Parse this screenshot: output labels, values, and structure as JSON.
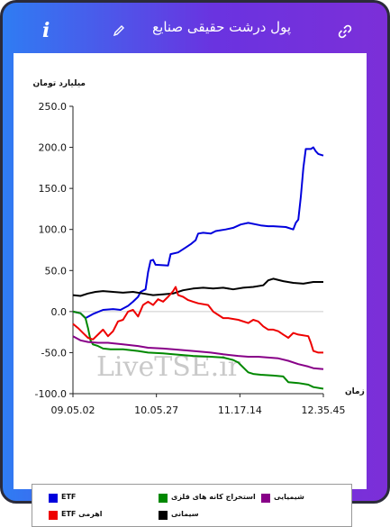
{
  "header": {
    "title": "پول درشت حقیقی صنایع"
  },
  "watermark": "LiveTSE.ir",
  "chart_data": {
    "type": "line",
    "ylabel": "میلیارد تومان",
    "xlabel": "زمان",
    "ylim": [
      -100,
      250
    ],
    "yticks": [
      "250.0",
      "200.0",
      "150.0",
      "100.0",
      "50.0",
      "0.0",
      "-50.0",
      "-100.0"
    ],
    "xticks": [
      "09.05.02",
      "10.05.27",
      "11.17.14",
      "12.35.45"
    ],
    "x_range": [
      0,
      100
    ],
    "grid": false,
    "legend_position": "bottom",
    "colors": {
      "ETF": "#0000dd",
      "metal": "#008800",
      "chem": "#880088",
      "lever": "#ee0000",
      "cement": "#000000"
    },
    "series": [
      {
        "name": "ETF",
        "color": "#0000dd",
        "points": [
          [
            0,
            0
          ],
          [
            3,
            -2
          ],
          [
            5,
            -8
          ],
          [
            8,
            -3
          ],
          [
            12,
            2
          ],
          [
            16,
            3
          ],
          [
            19,
            2
          ],
          [
            22,
            7
          ],
          [
            24,
            12
          ],
          [
            26,
            18
          ],
          [
            27,
            24
          ],
          [
            29,
            27
          ],
          [
            30,
            48
          ],
          [
            31,
            62
          ],
          [
            32,
            63
          ],
          [
            33,
            57
          ],
          [
            38,
            56
          ],
          [
            39,
            70
          ],
          [
            42,
            72
          ],
          [
            45,
            78
          ],
          [
            47,
            82
          ],
          [
            49,
            87
          ],
          [
            50,
            95
          ],
          [
            52,
            96
          ],
          [
            55,
            95
          ],
          [
            57,
            98
          ],
          [
            61,
            100
          ],
          [
            64,
            102
          ],
          [
            67,
            106
          ],
          [
            70,
            108
          ],
          [
            75,
            105
          ],
          [
            78,
            104
          ],
          [
            80,
            104
          ],
          [
            85,
            103
          ],
          [
            88,
            100
          ],
          [
            89,
            108
          ],
          [
            90,
            112
          ],
          [
            91,
            140
          ],
          [
            92,
            175
          ],
          [
            93,
            198
          ],
          [
            95,
            198
          ],
          [
            96,
            200
          ],
          [
            97,
            195
          ],
          [
            98,
            192
          ],
          [
            100,
            190
          ]
        ]
      },
      {
        "name": "استخراج کانه های فلزی",
        "color": "#008800",
        "points": [
          [
            0,
            0
          ],
          [
            3,
            -2
          ],
          [
            5,
            -8
          ],
          [
            6,
            -20
          ],
          [
            7,
            -35
          ],
          [
            8,
            -40
          ],
          [
            10,
            -42
          ],
          [
            12,
            -45
          ],
          [
            15,
            -46
          ],
          [
            20,
            -46
          ],
          [
            26,
            -48
          ],
          [
            30,
            -50
          ],
          [
            36,
            -51
          ],
          [
            40,
            -52
          ],
          [
            48,
            -54
          ],
          [
            55,
            -55
          ],
          [
            60,
            -56
          ],
          [
            64,
            -59
          ],
          [
            66,
            -62
          ],
          [
            70,
            -74
          ],
          [
            72,
            -76
          ],
          [
            75,
            -77
          ],
          [
            80,
            -78
          ],
          [
            84,
            -79
          ],
          [
            86,
            -86
          ],
          [
            90,
            -87
          ],
          [
            94,
            -89
          ],
          [
            96,
            -92
          ],
          [
            100,
            -94
          ]
        ]
      },
      {
        "name": "شیمیایی",
        "color": "#880088",
        "points": [
          [
            0,
            -30
          ],
          [
            3,
            -35
          ],
          [
            6,
            -37
          ],
          [
            10,
            -38
          ],
          [
            14,
            -38
          ],
          [
            20,
            -40
          ],
          [
            26,
            -42
          ],
          [
            30,
            -44
          ],
          [
            36,
            -45
          ],
          [
            40,
            -46
          ],
          [
            48,
            -48
          ],
          [
            55,
            -50
          ],
          [
            60,
            -52
          ],
          [
            66,
            -54
          ],
          [
            70,
            -55
          ],
          [
            74,
            -55
          ],
          [
            78,
            -56
          ],
          [
            82,
            -57
          ],
          [
            86,
            -60
          ],
          [
            90,
            -64
          ],
          [
            94,
            -67
          ],
          [
            96,
            -69
          ],
          [
            100,
            -70
          ]
        ]
      },
      {
        "name": "سیمانی",
        "color": "#000000",
        "points": [
          [
            0,
            20
          ],
          [
            3,
            19
          ],
          [
            6,
            22
          ],
          [
            9,
            24
          ],
          [
            12,
            25
          ],
          [
            16,
            24
          ],
          [
            20,
            23
          ],
          [
            24,
            24
          ],
          [
            28,
            22
          ],
          [
            32,
            20
          ],
          [
            36,
            21
          ],
          [
            40,
            22
          ],
          [
            44,
            26
          ],
          [
            48,
            28
          ],
          [
            52,
            29
          ],
          [
            56,
            28
          ],
          [
            60,
            29
          ],
          [
            64,
            27
          ],
          [
            68,
            29
          ],
          [
            72,
            30
          ],
          [
            76,
            32
          ],
          [
            78,
            38
          ],
          [
            80,
            40
          ],
          [
            84,
            37
          ],
          [
            88,
            35
          ],
          [
            92,
            34
          ],
          [
            96,
            36
          ],
          [
            100,
            36
          ]
        ]
      },
      {
        "name": "اهرمی ETF",
        "color": "#ee0000",
        "points": [
          [
            0,
            -15
          ],
          [
            2,
            -20
          ],
          [
            4,
            -26
          ],
          [
            6,
            -32
          ],
          [
            8,
            -34
          ],
          [
            10,
            -28
          ],
          [
            12,
            -22
          ],
          [
            14,
            -30
          ],
          [
            16,
            -24
          ],
          [
            18,
            -12
          ],
          [
            20,
            -10
          ],
          [
            22,
            0
          ],
          [
            24,
            2
          ],
          [
            26,
            -6
          ],
          [
            28,
            8
          ],
          [
            30,
            12
          ],
          [
            32,
            8
          ],
          [
            34,
            15
          ],
          [
            36,
            12
          ],
          [
            38,
            18
          ],
          [
            40,
            25
          ],
          [
            41,
            30
          ],
          [
            42,
            20
          ],
          [
            44,
            18
          ],
          [
            46,
            14
          ],
          [
            48,
            12
          ],
          [
            50,
            10
          ],
          [
            54,
            8
          ],
          [
            56,
            0
          ],
          [
            58,
            -4
          ],
          [
            60,
            -8
          ],
          [
            62,
            -8
          ],
          [
            66,
            -10
          ],
          [
            70,
            -14
          ],
          [
            72,
            -10
          ],
          [
            74,
            -12
          ],
          [
            76,
            -18
          ],
          [
            78,
            -22
          ],
          [
            80,
            -22
          ],
          [
            82,
            -24
          ],
          [
            84,
            -28
          ],
          [
            85,
            -30
          ],
          [
            86,
            -32
          ],
          [
            88,
            -26
          ],
          [
            90,
            -28
          ],
          [
            94,
            -30
          ],
          [
            95,
            -38
          ],
          [
            96,
            -48
          ],
          [
            98,
            -50
          ],
          [
            100,
            -50
          ]
        ]
      }
    ]
  },
  "legend": [
    {
      "label": "ETF",
      "color": "#0000dd"
    },
    {
      "label": "استخراج کانه های فلزی",
      "color": "#008800"
    },
    {
      "label": "شیمیایی",
      "color": "#880088"
    },
    {
      "label": "اهرمی ETF",
      "color": "#ee0000"
    },
    {
      "label": "سیمانی",
      "color": "#000000"
    }
  ]
}
